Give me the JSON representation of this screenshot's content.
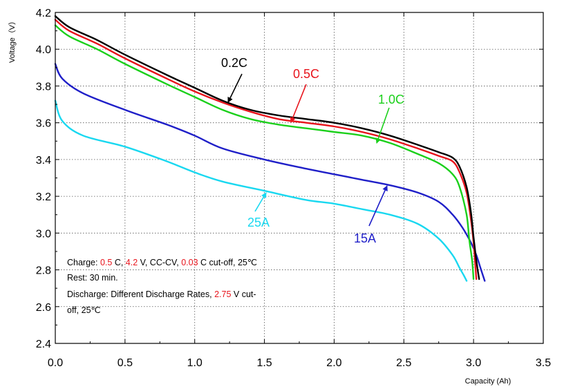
{
  "chart_data": {
    "type": "line",
    "title": "",
    "xlabel": "Capacity (Ah)",
    "ylabel": "Voltage（V）",
    "xlim": [
      0.0,
      3.5
    ],
    "ylim": [
      2.4,
      4.2
    ],
    "xticks": [
      "0.0",
      "0.5",
      "1.0",
      "1.5",
      "2.0",
      "2.5",
      "3.0",
      "3.5"
    ],
    "yticks": [
      "2.4",
      "2.6",
      "2.8",
      "3.0",
      "3.2",
      "3.4",
      "3.6",
      "3.8",
      "4.0",
      "4.2"
    ],
    "grid": true,
    "series": [
      {
        "name": "0.2C",
        "color": "#000000",
        "x": [
          0.0,
          0.1,
          0.3,
          0.5,
          0.8,
          1.0,
          1.2,
          1.4,
          1.6,
          1.8,
          2.0,
          2.2,
          2.4,
          2.6,
          2.75,
          2.85,
          2.9,
          2.95,
          2.98,
          3.0,
          3.02,
          3.04
        ],
        "y": [
          4.18,
          4.12,
          4.05,
          3.97,
          3.86,
          3.79,
          3.72,
          3.67,
          3.64,
          3.62,
          3.6,
          3.57,
          3.53,
          3.48,
          3.44,
          3.41,
          3.36,
          3.25,
          3.12,
          2.98,
          2.85,
          2.75
        ]
      },
      {
        "name": "0.5C",
        "color": "#e8141c",
        "x": [
          0.0,
          0.1,
          0.3,
          0.5,
          0.8,
          1.0,
          1.2,
          1.4,
          1.6,
          1.8,
          2.0,
          2.2,
          2.4,
          2.6,
          2.75,
          2.85,
          2.9,
          2.95,
          2.98,
          3.0,
          3.01,
          3.02
        ],
        "y": [
          4.16,
          4.1,
          4.03,
          3.95,
          3.84,
          3.77,
          3.71,
          3.66,
          3.62,
          3.6,
          3.58,
          3.55,
          3.51,
          3.46,
          3.42,
          3.39,
          3.33,
          3.22,
          3.08,
          2.95,
          2.85,
          2.75
        ]
      },
      {
        "name": "1.0C",
        "color": "#1bd01b",
        "x": [
          0.0,
          0.1,
          0.3,
          0.5,
          0.8,
          1.0,
          1.2,
          1.4,
          1.6,
          1.8,
          2.0,
          2.2,
          2.4,
          2.6,
          2.75,
          2.85,
          2.9,
          2.95,
          2.97,
          2.99,
          3.0
        ],
        "y": [
          4.13,
          4.07,
          4.0,
          3.92,
          3.81,
          3.74,
          3.67,
          3.62,
          3.59,
          3.57,
          3.55,
          3.53,
          3.49,
          3.43,
          3.38,
          3.32,
          3.25,
          3.1,
          2.96,
          2.85,
          2.75
        ]
      },
      {
        "name": "15A",
        "color": "#1f1fc8",
        "x": [
          0.0,
          0.05,
          0.2,
          0.5,
          0.8,
          1.0,
          1.2,
          1.5,
          1.8,
          2.0,
          2.2,
          2.4,
          2.6,
          2.75,
          2.85,
          2.92,
          2.98,
          3.02,
          3.05,
          3.08
        ],
        "y": [
          3.92,
          3.84,
          3.76,
          3.67,
          3.59,
          3.53,
          3.46,
          3.4,
          3.35,
          3.32,
          3.29,
          3.26,
          3.22,
          3.17,
          3.1,
          3.03,
          2.95,
          2.88,
          2.81,
          2.74
        ]
      },
      {
        "name": "25A",
        "color": "#19d8f0",
        "x": [
          0.0,
          0.05,
          0.2,
          0.5,
          0.8,
          1.0,
          1.2,
          1.5,
          1.8,
          2.0,
          2.2,
          2.4,
          2.6,
          2.75,
          2.85,
          2.9,
          2.93,
          2.95
        ],
        "y": [
          3.72,
          3.61,
          3.53,
          3.47,
          3.39,
          3.33,
          3.28,
          3.23,
          3.18,
          3.16,
          3.13,
          3.1,
          3.05,
          2.97,
          2.88,
          2.81,
          2.77,
          2.74
        ]
      }
    ],
    "annotations": [
      {
        "text": "0.2C",
        "color": "#000000"
      },
      {
        "text": "0.5C",
        "color": "#e8141c"
      },
      {
        "text": "1.0C",
        "color": "#1bd01b"
      },
      {
        "text": "15A",
        "color": "#1f1fc8"
      },
      {
        "text": "25A",
        "color": "#19d8f0"
      }
    ]
  },
  "conditions": {
    "line1": {
      "a": "Charge: ",
      "b": "0.5",
      "c": " C, ",
      "d": "4.2",
      "e": " V, CC-CV, ",
      "f": "0.03",
      "g": " C cut-off, 25℃"
    },
    "line2": "Rest: 30 min.",
    "line3": {
      "a": "Discharge: Different Discharge Rates, ",
      "b": "2.75",
      "c": " V cut-"
    },
    "line4": "off, 25℃",
    "highlight_color": "#e8141c"
  }
}
